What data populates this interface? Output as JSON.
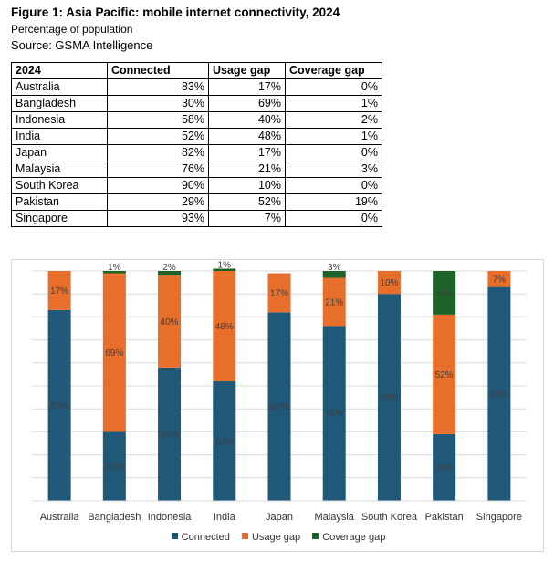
{
  "title": "Figure 1: Asia Pacific: mobile internet connectivity, 2024",
  "subtitle": "Percentage of population",
  "source": "Source: GSMA Intelligence",
  "table": {
    "headers": [
      "2024",
      "Connected",
      "Usage gap",
      "Coverage gap"
    ],
    "rows": [
      [
        "Australia",
        "83%",
        "17%",
        "0%"
      ],
      [
        "Bangladesh",
        "30%",
        "69%",
        "1%"
      ],
      [
        "Indonesia",
        "58%",
        "40%",
        "2%"
      ],
      [
        "India",
        "52%",
        "48%",
        "1%"
      ],
      [
        "Japan",
        "82%",
        "17%",
        "0%"
      ],
      [
        "Malaysia",
        "76%",
        "21%",
        "3%"
      ],
      [
        "South Korea",
        "90%",
        "10%",
        "0%"
      ],
      [
        "Pakistan",
        "29%",
        "52%",
        "19%"
      ],
      [
        "Singapore",
        "93%",
        "7%",
        "0%"
      ]
    ]
  },
  "chart_data": {
    "type": "bar",
    "stacked": true,
    "categories": [
      "Australia",
      "Bangladesh",
      "Indonesia",
      "India",
      "Japan",
      "Malaysia",
      "South Korea",
      "Pakistan",
      "Singapore"
    ],
    "ylim": [
      0,
      100
    ],
    "grid": true,
    "legend": "bottom",
    "series": [
      {
        "name": "Connected",
        "color": "#1f5878",
        "values": [
          83,
          30,
          58,
          52,
          82,
          76,
          90,
          29,
          93
        ]
      },
      {
        "name": "Usage gap",
        "color": "#e86e2c",
        "values": [
          17,
          69,
          40,
          48,
          17,
          21,
          10,
          52,
          7
        ]
      },
      {
        "name": "Coverage gap",
        "color": "#1d6227",
        "values": [
          0,
          1,
          2,
          1,
          0,
          3,
          0,
          19,
          0
        ]
      }
    ]
  }
}
